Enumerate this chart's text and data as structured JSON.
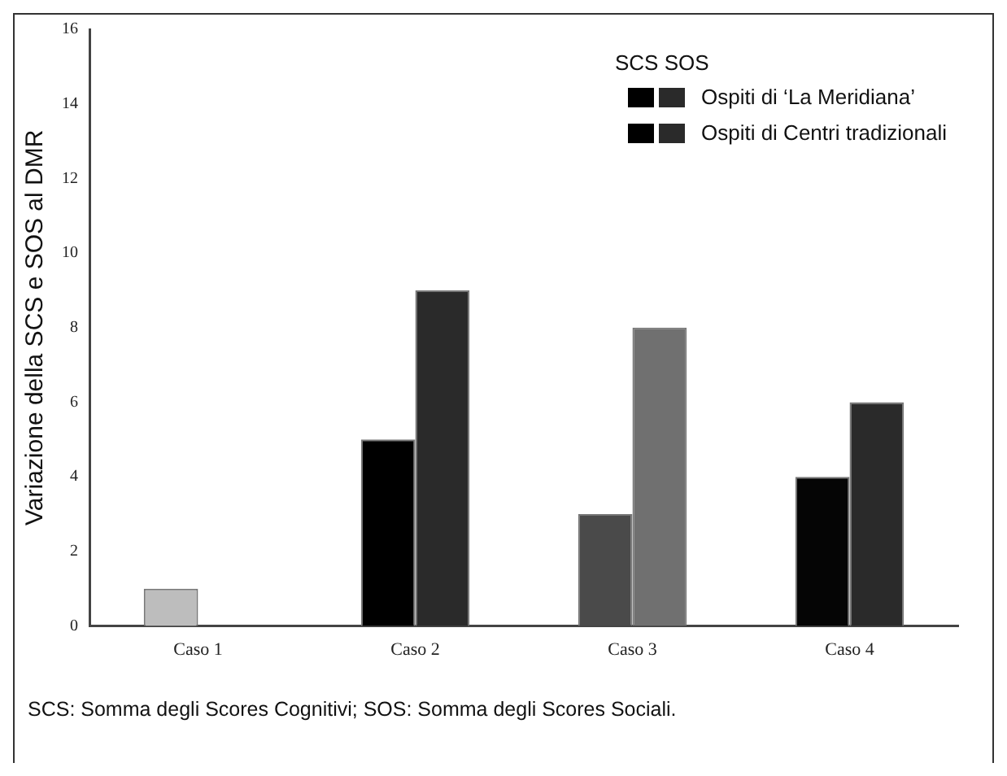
{
  "chart_data": {
    "type": "bar",
    "ylabel": "Variazione della SCS e SOS al DMR",
    "legend_title": "SCS SOS",
    "categories": [
      "Caso 1",
      "Caso 2",
      "Caso 3",
      "Caso 4"
    ],
    "series": [
      {
        "color": "#000000",
        "colors": [
          "#bdbdbd",
          "#000000",
          "#4a4a4a",
          "#050505"
        ],
        "values": [
          1,
          5,
          3,
          4
        ]
      },
      {
        "color": "#2a2a2a",
        "colors": [
          "#2a2a2a",
          "#2a2a2a",
          "#707070",
          "#2a2a2a"
        ],
        "values": [
          null,
          9,
          8,
          6
        ]
      }
    ],
    "ylim": [
      0,
      16
    ],
    "yticks": [
      0,
      2,
      4,
      6,
      8,
      10,
      12,
      14,
      16
    ],
    "grid": false,
    "annotations": [
      "Ospiti di ‘La Meridiana’",
      "Ospiti di Centri tradizionali",
      "SCS: Somma degli Scores Cognitivi; SOS: Somma degli Scores Sociali."
    ]
  }
}
